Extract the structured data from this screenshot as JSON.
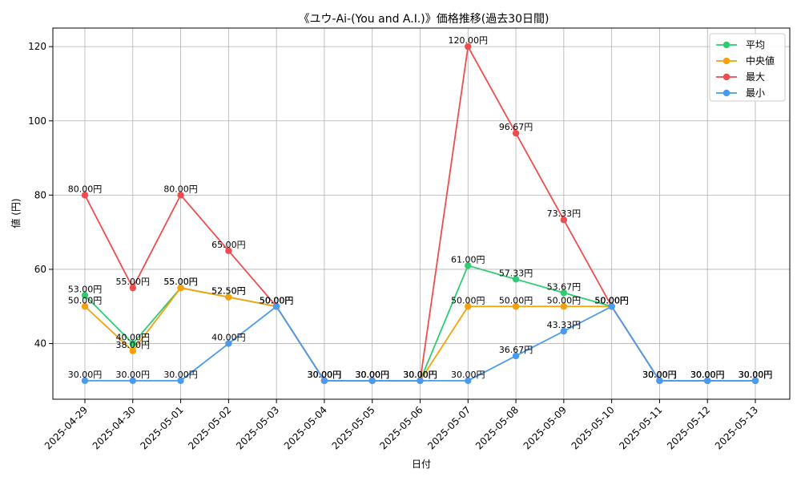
{
  "chart_data": {
    "type": "line",
    "title": "《ユウ-Ai-(You and A.I.)》価格推移(過去30日間)",
    "xlabel": "日付",
    "ylabel": "値 (円)",
    "ylim": [
      25,
      125
    ],
    "yticks": [
      40,
      60,
      80,
      100,
      120
    ],
    "grid": true,
    "legend_position": "top-right",
    "value_suffix": "円",
    "categories": [
      "2025-04-29",
      "2025-04-30",
      "2025-05-01",
      "2025-05-02",
      "2025-05-03",
      "2025-05-04",
      "2025-05-05",
      "2025-05-06",
      "2025-05-07",
      "2025-05-08",
      "2025-05-09",
      "2025-05-10",
      "2025-05-11",
      "2025-05-12",
      "2025-05-13"
    ],
    "series": [
      {
        "name": "平均",
        "color": "#2ecc71",
        "values": [
          53.0,
          40.0,
          55.0,
          52.5,
          50.0,
          30.0,
          30.0,
          30.0,
          61.0,
          57.33,
          53.67,
          50.0,
          30.0,
          30.0,
          30.0
        ]
      },
      {
        "name": "中央値",
        "color": "#f5a10a",
        "values": [
          50.0,
          38.0,
          55.0,
          52.5,
          50.0,
          30.0,
          30.0,
          30.0,
          50.0,
          50.0,
          50.0,
          50.0,
          30.0,
          30.0,
          30.0
        ]
      },
      {
        "name": "最大",
        "color": "#ef4d4d",
        "values": [
          80.0,
          55.0,
          80.0,
          65.0,
          50.0,
          30.0,
          30.0,
          30.0,
          120.0,
          96.67,
          73.33,
          50.0,
          30.0,
          30.0,
          30.0
        ]
      },
      {
        "name": "最小",
        "color": "#4a9af0",
        "values": [
          30.0,
          30.0,
          30.0,
          40.0,
          50.0,
          30.0,
          30.0,
          30.0,
          30.0,
          36.67,
          43.33,
          50.0,
          30.0,
          30.0,
          30.0
        ]
      }
    ]
  }
}
